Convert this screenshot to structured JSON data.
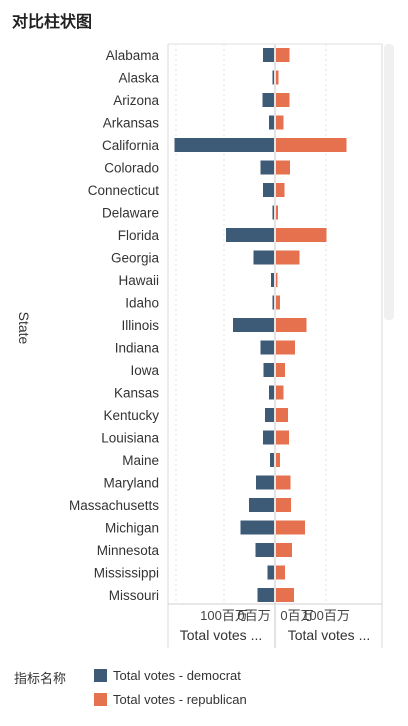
{
  "title": "对比柱状图",
  "colors": {
    "democrat": "#3d5a77",
    "republican": "#e5714f"
  },
  "legend": {
    "title": "指标名称",
    "items": [
      "Total votes - democrat",
      "Total votes - republican"
    ]
  },
  "chart_data": {
    "type": "bar",
    "orientation": "horizontal",
    "layout": "diverging (two opposed panels)",
    "ylabel": "State",
    "categories": [
      "Alabama",
      "Alaska",
      "Arizona",
      "Arkansas",
      "California",
      "Colorado",
      "Connecticut",
      "Delaware",
      "Florida",
      "Georgia",
      "Hawaii",
      "Idaho",
      "Illinois",
      "Indiana",
      "Iowa",
      "Kansas",
      "Kentucky",
      "Louisiana",
      "Maine",
      "Maryland",
      "Massachusetts",
      "Michigan",
      "Minnesota",
      "Mississippi",
      "Missouri"
    ],
    "series": [
      {
        "name": "Total votes - democrat",
        "values": [
          22,
          2,
          23,
          10,
          199,
          27,
          22,
          1,
          96,
          41,
          6,
          3,
          82,
          27,
          21,
          10,
          18,
          22,
          8,
          36,
          50,
          67,
          37,
          13,
          33
        ]
      },
      {
        "name": "Total votes - republican",
        "values": [
          27,
          5,
          27,
          15,
          141,
          28,
          17,
          4,
          101,
          47,
          3,
          8,
          61,
          38,
          18,
          15,
          24,
          26,
          8,
          29,
          30,
          58,
          32,
          18,
          36
        ]
      }
    ],
    "xaxis_labels": [
      "100百万",
      "0百万",
      "0百万",
      "100百万"
    ],
    "xaxis_titles": [
      "Total votes ...",
      "Total votes ..."
    ],
    "grid": true
  }
}
